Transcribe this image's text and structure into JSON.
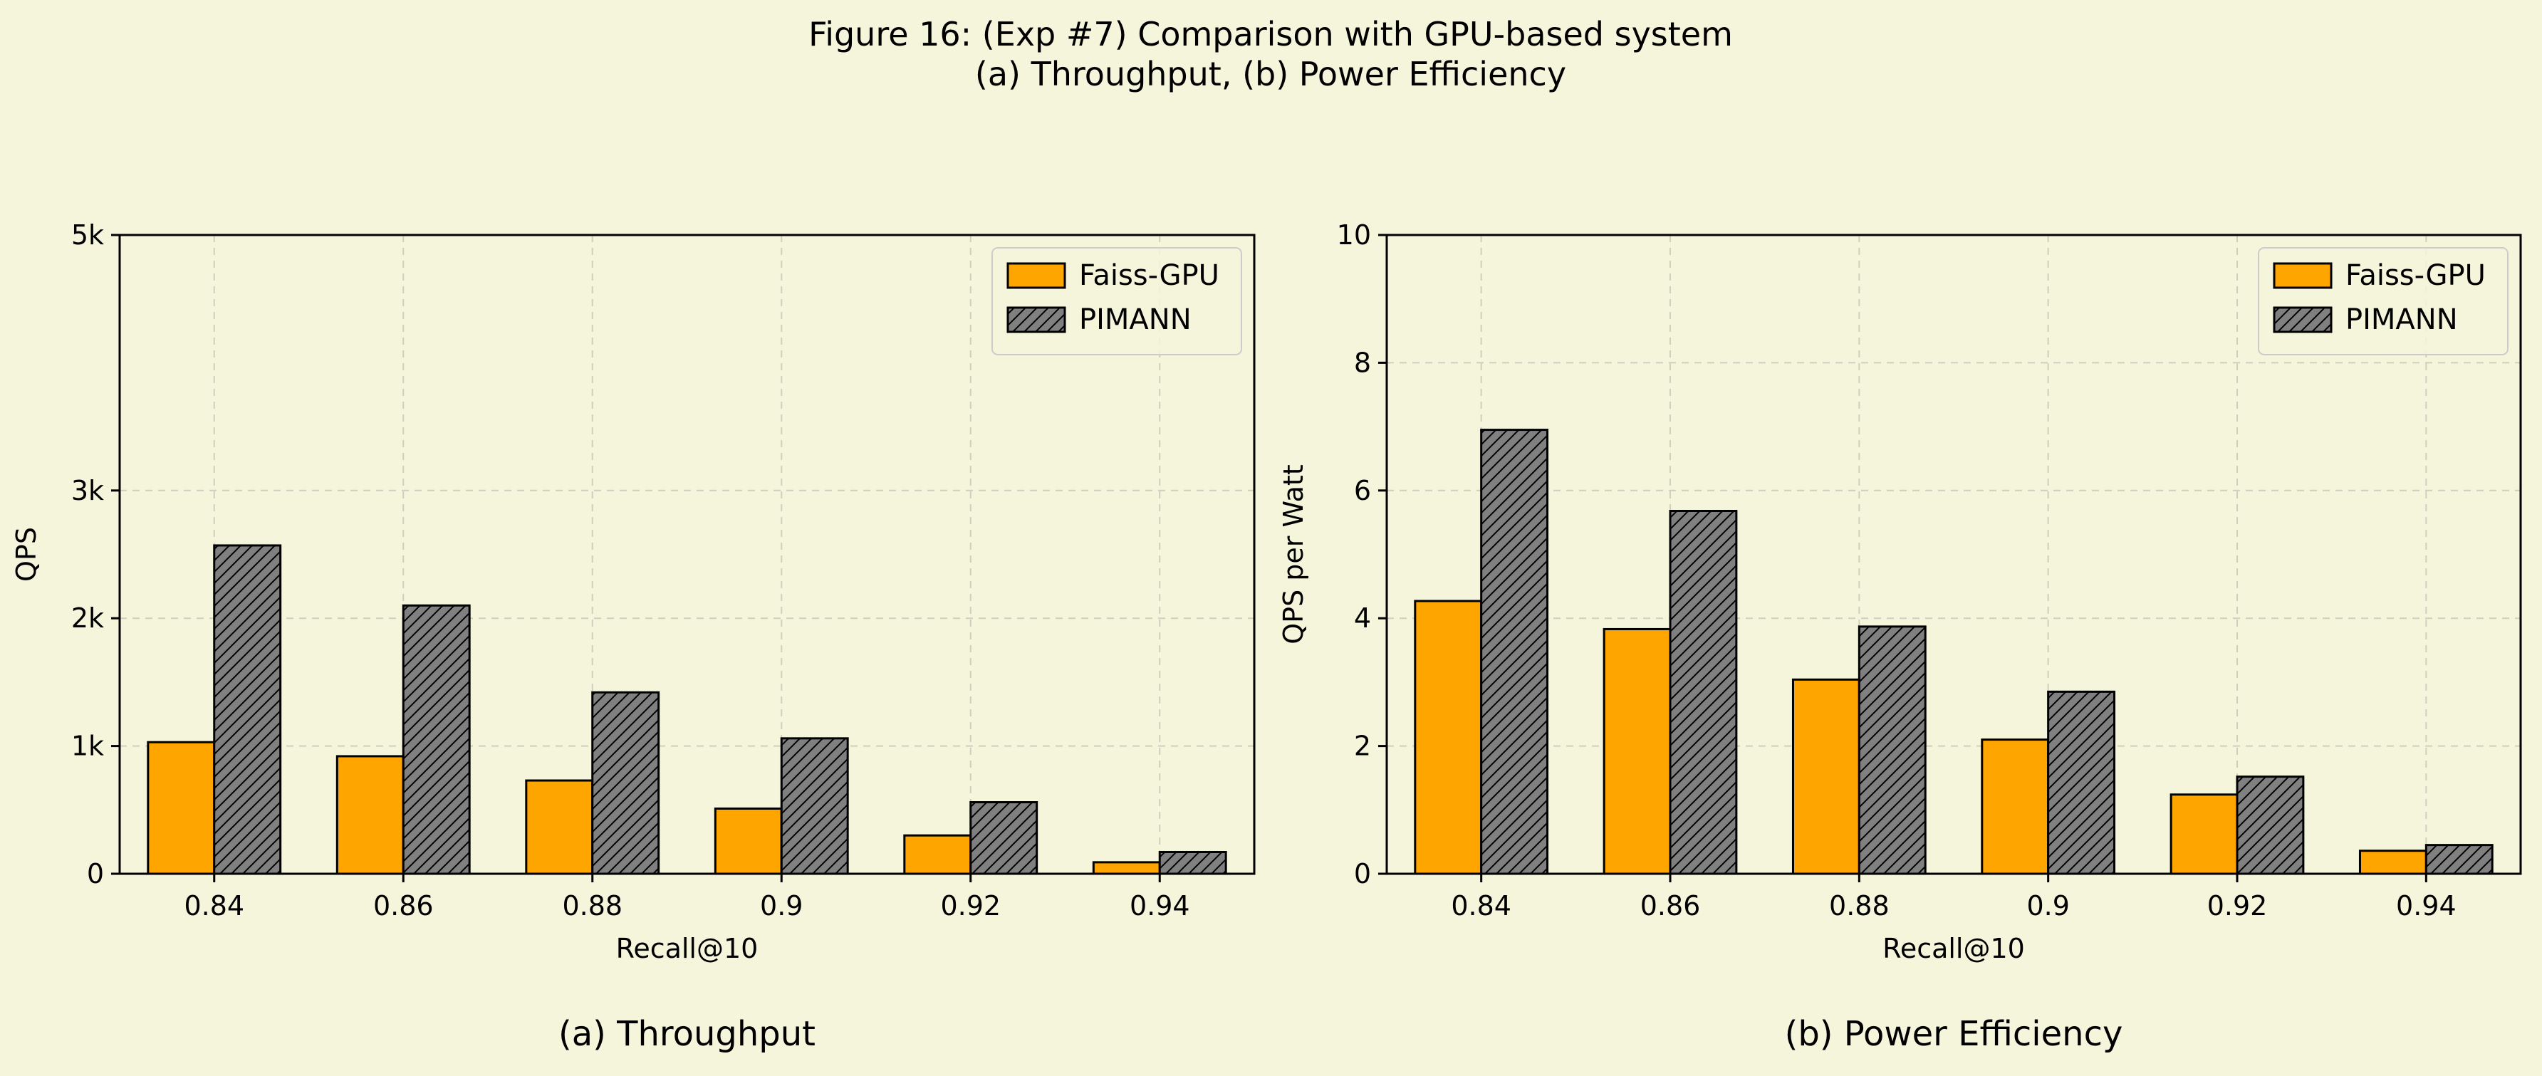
{
  "figure": {
    "title_line1": "Figure 16: (Exp #7) Comparison with GPU-based system",
    "title_line2": "(a) Throughput, (b) Power Efficiency"
  },
  "colors": {
    "background": "#f5f5dc",
    "faiss": "#ffa500",
    "pimann": "#808080",
    "edge": "#000000",
    "grid": "#cfcfbf"
  },
  "chart_data": [
    {
      "type": "bar",
      "caption": "(a) Throughput",
      "xlabel": "Recall@10",
      "ylabel": "QPS",
      "ylim": [
        0,
        5000
      ],
      "yticks": [
        0,
        1000,
        2000,
        3000,
        5000
      ],
      "ytick_labels": [
        "0",
        "1k",
        "2k",
        "3k",
        "5k"
      ],
      "grid": true,
      "legend_position": "top-right",
      "categories": [
        "0.84",
        "0.86",
        "0.88",
        "0.9",
        "0.92",
        "0.94"
      ],
      "series": [
        {
          "name": "Faiss-GPU",
          "values": [
            1030,
            920,
            730,
            510,
            300,
            90
          ]
        },
        {
          "name": "PIMANN",
          "values": [
            2570,
            2100,
            1420,
            1060,
            560,
            170
          ]
        }
      ]
    },
    {
      "type": "bar",
      "caption": "(b) Power Efficiency",
      "xlabel": "Recall@10",
      "ylabel": "QPS per Watt",
      "ylim": [
        0,
        10
      ],
      "yticks": [
        0,
        2,
        4,
        6,
        8,
        10
      ],
      "ytick_labels": [
        "0",
        "2",
        "4",
        "6",
        "8",
        "10"
      ],
      "grid": true,
      "legend_position": "top-right",
      "categories": [
        "0.84",
        "0.86",
        "0.88",
        "0.9",
        "0.92",
        "0.94"
      ],
      "series": [
        {
          "name": "Faiss-GPU",
          "values": [
            4.27,
            3.83,
            3.04,
            2.1,
            1.24,
            0.36
          ]
        },
        {
          "name": "PIMANN",
          "values": [
            6.95,
            5.68,
            3.87,
            2.85,
            1.52,
            0.45
          ]
        }
      ]
    }
  ]
}
